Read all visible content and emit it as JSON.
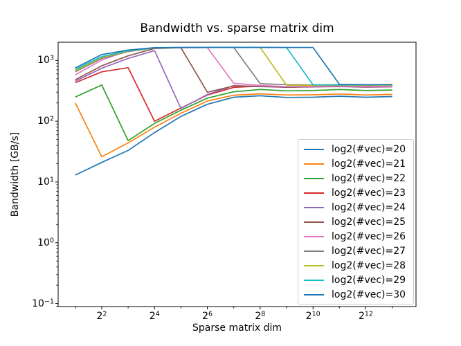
{
  "chart_data": {
    "type": "line",
    "title": "Bandwidth vs. sparse matrix dim",
    "xlabel": "Sparse matrix dim",
    "ylabel": "Bandwidth [GB/s]",
    "x_scale": "log2",
    "y_scale": "log10",
    "grid": false,
    "legend_position": "lower right",
    "xlim_log2": [
      0.35,
      13.9
    ],
    "ylim_log10": [
      -1.05,
      3.3
    ],
    "x_major_tick_exponents": [
      2,
      4,
      6,
      8,
      10,
      12
    ],
    "x_minor_tick_exponents": [
      1,
      3,
      5,
      7,
      9,
      11,
      13
    ],
    "y_major_tick_exponents": [
      3,
      2,
      1,
      0,
      -1
    ],
    "x_tick_base": 2,
    "y_tick_base": 10,
    "x": [
      2,
      4,
      8,
      16,
      32,
      64,
      128,
      256,
      512,
      1024,
      2048,
      4096,
      8192
    ],
    "series": [
      {
        "name": "log2(#vec)=20",
        "color": "#1f77b4",
        "values": [
          13,
          21,
          33,
          65,
          120,
          190,
          248,
          262,
          246,
          248,
          258,
          248,
          255
        ]
      },
      {
        "name": "log2(#vec)=21",
        "color": "#ff7f0e",
        "values": [
          200,
          26,
          44,
          80,
          135,
          215,
          268,
          282,
          270,
          272,
          281,
          270,
          276
        ]
      },
      {
        "name": "log2(#vec)=22",
        "color": "#2ca02c",
        "values": [
          250,
          395,
          48,
          92,
          152,
          240,
          305,
          333,
          316,
          320,
          333,
          320,
          326
        ]
      },
      {
        "name": "log2(#vec)=23",
        "color": "#d62728",
        "values": [
          430,
          650,
          760,
          100,
          165,
          270,
          360,
          378,
          362,
          372,
          386,
          375,
          381
        ]
      },
      {
        "name": "log2(#vec)=24",
        "color": "#9467bd",
        "values": [
          455,
          745,
          1080,
          1450,
          162,
          275,
          385,
          372,
          361,
          367,
          372,
          363,
          368
        ]
      },
      {
        "name": "log2(#vec)=25",
        "color": "#8c564b",
        "values": [
          480,
          815,
          1190,
          1570,
          1620,
          300,
          380,
          375,
          364,
          370,
          374,
          366,
          372
        ]
      },
      {
        "name": "log2(#vec)=26",
        "color": "#e377c2",
        "values": [
          577,
          1015,
          1450,
          1600,
          1625,
          1632,
          420,
          388,
          372,
          375,
          380,
          370,
          374
        ]
      },
      {
        "name": "log2(#vec)=27",
        "color": "#7f7f7f",
        "values": [
          650,
          1080,
          1400,
          1605,
          1628,
          1634,
          1634,
          415,
          400,
          396,
          401,
          398,
          401
        ]
      },
      {
        "name": "log2(#vec)=28",
        "color": "#bcbd22",
        "values": [
          680,
          1120,
          1430,
          1612,
          1630,
          1636,
          1636,
          1633,
          392,
          389,
          394,
          389,
          391
        ]
      },
      {
        "name": "log2(#vec)=29",
        "color": "#17becf",
        "values": [
          710,
          1160,
          1450,
          1618,
          1633,
          1638,
          1638,
          1635,
          1632,
          398,
          395,
          397,
          398
        ]
      },
      {
        "name": "log2(#vec)=30",
        "color": "#1f77b4",
        "values": [
          750,
          1250,
          1480,
          1622,
          1636,
          1641,
          1641,
          1639,
          1636,
          1636,
          404,
          399,
          401
        ]
      }
    ]
  }
}
